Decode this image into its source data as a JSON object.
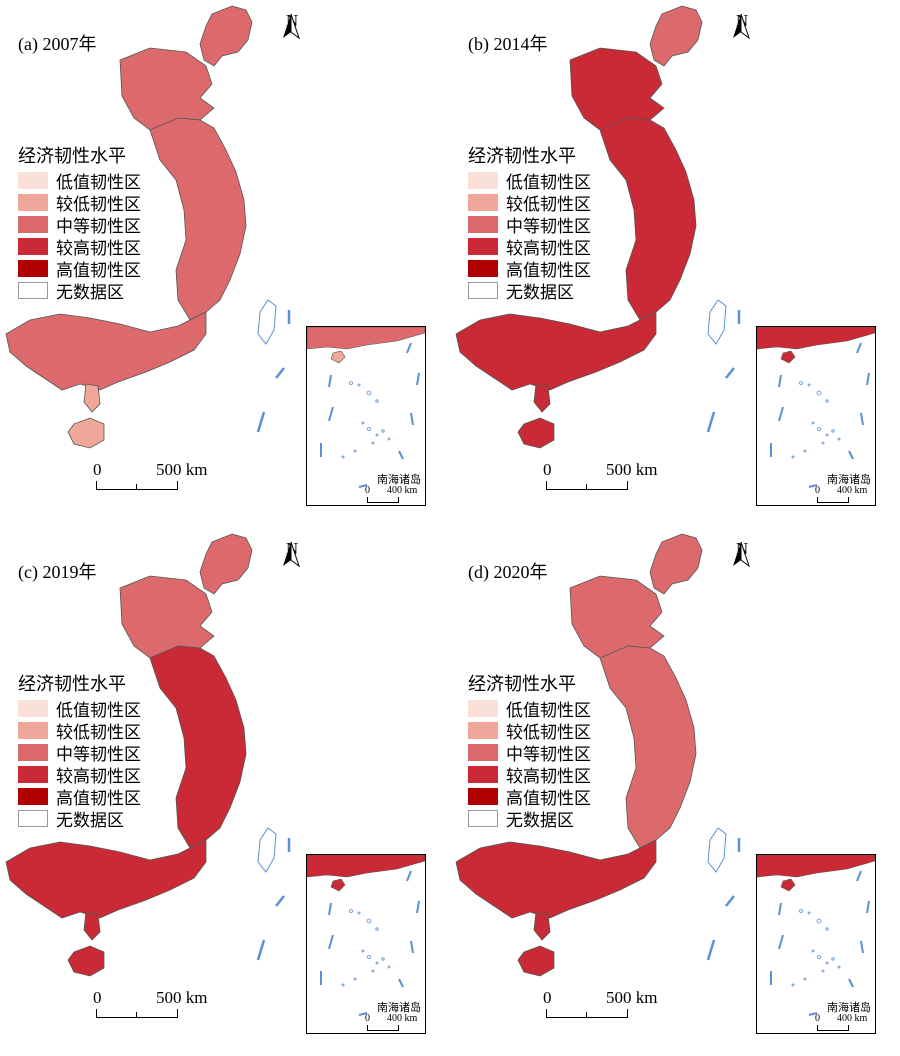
{
  "legend": {
    "title": "经济韧性水平",
    "items": [
      {
        "label": "低值韧性区",
        "color": "#fbe0d8"
      },
      {
        "label": "较低韧性区",
        "color": "#efa79a"
      },
      {
        "label": "中等韧性区",
        "color": "#dc6a6c"
      },
      {
        "label": "较高韧性区",
        "color": "#c92a35"
      },
      {
        "label": "高值韧性区",
        "color": "#b00000"
      },
      {
        "label": "无数据区",
        "color": "#ffffff"
      }
    ]
  },
  "north_label": "N",
  "scale": {
    "zero": "0",
    "distance": "500 km"
  },
  "inset": {
    "label": "南海诸岛",
    "zero": "0",
    "distance": "400 km"
  },
  "colors": {
    "boundary": "#5b8fd6",
    "outline": "#555555"
  },
  "panels": [
    {
      "title": "(a) 2007年",
      "fills": {
        "north": "#dc6a6c",
        "northeast": "#dc6a6c",
        "east": "#dc6a6c",
        "south": "#dc6a6c",
        "hainan": "#efa79a",
        "island": "#ffffff"
      }
    },
    {
      "title": "(b) 2014年",
      "fills": {
        "north": "#c92a35",
        "northeast": "#dc6a6c",
        "east": "#c92a35",
        "south": "#c92a35",
        "hainan": "#c92a35",
        "island": "#ffffff"
      }
    },
    {
      "title": "(c) 2019年",
      "fills": {
        "north": "#dc6a6c",
        "northeast": "#dc6a6c",
        "east": "#c92a35",
        "south": "#c92a35",
        "hainan": "#c92a35",
        "island": "#ffffff"
      }
    },
    {
      "title": "(d) 2020年",
      "fills": {
        "north": "#dc6a6c",
        "northeast": "#dc6a6c",
        "east": "#dc6a6c",
        "south": "#c92a35",
        "hainan": "#c92a35",
        "island": "#ffffff"
      }
    }
  ]
}
